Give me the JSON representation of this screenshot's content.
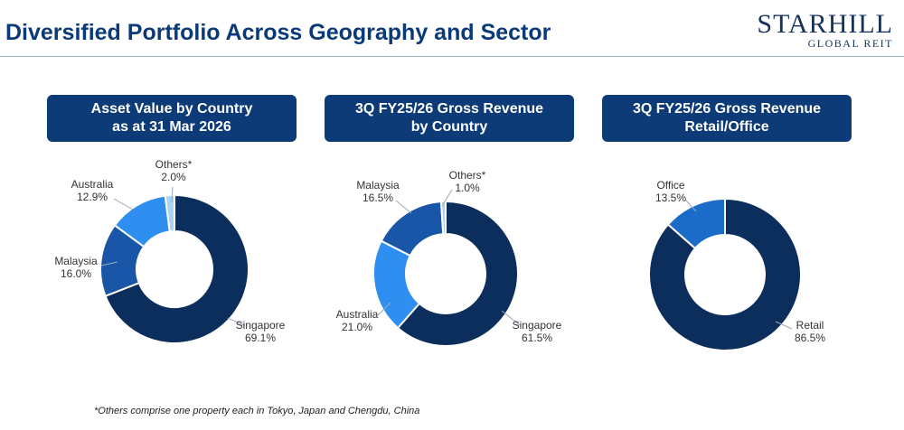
{
  "header": {
    "title": "Diversified Portfolio Across Geography and Sector",
    "logo_main": "STARHILL",
    "logo_sub": "GLOBAL REIT"
  },
  "footnote": "*Others comprise one property each in Tokyo, Japan and Chengdu, China",
  "chart_data": [
    {
      "type": "pie",
      "title_lines": [
        "Asset Value by Country",
        "as at 31 Mar 2026"
      ],
      "labels": [
        "Singapore",
        "Malaysia",
        "Australia",
        "Others*"
      ],
      "values": [
        69.1,
        16.0,
        12.9,
        2.0
      ],
      "value_labels": [
        "69.1%",
        "16.0%",
        "12.9%",
        "2.0%"
      ],
      "colors": [
        "#0c2e5c",
        "#1a56a8",
        "#2f8ff0",
        "#a9d2f5"
      ]
    },
    {
      "type": "pie",
      "title_lines": [
        "3Q FY25/26 Gross Revenue",
        "by Country"
      ],
      "labels": [
        "Singapore",
        "Australia",
        "Malaysia",
        "Others*"
      ],
      "values": [
        61.5,
        21.0,
        16.5,
        1.0
      ],
      "value_labels": [
        "61.5%",
        "21.0%",
        "16.5%",
        "1.0%"
      ],
      "colors": [
        "#0c2e5c",
        "#2f8ff0",
        "#1a56a8",
        "#a9d2f5"
      ]
    },
    {
      "type": "pie",
      "title_lines": [
        "3Q FY25/26 Gross Revenue",
        "Retail/Office"
      ],
      "labels": [
        "Retail",
        "Office"
      ],
      "values": [
        86.5,
        13.5
      ],
      "value_labels": [
        "86.5%",
        "13.5%"
      ],
      "colors": [
        "#0c2e5c",
        "#1a6cc8"
      ]
    }
  ]
}
